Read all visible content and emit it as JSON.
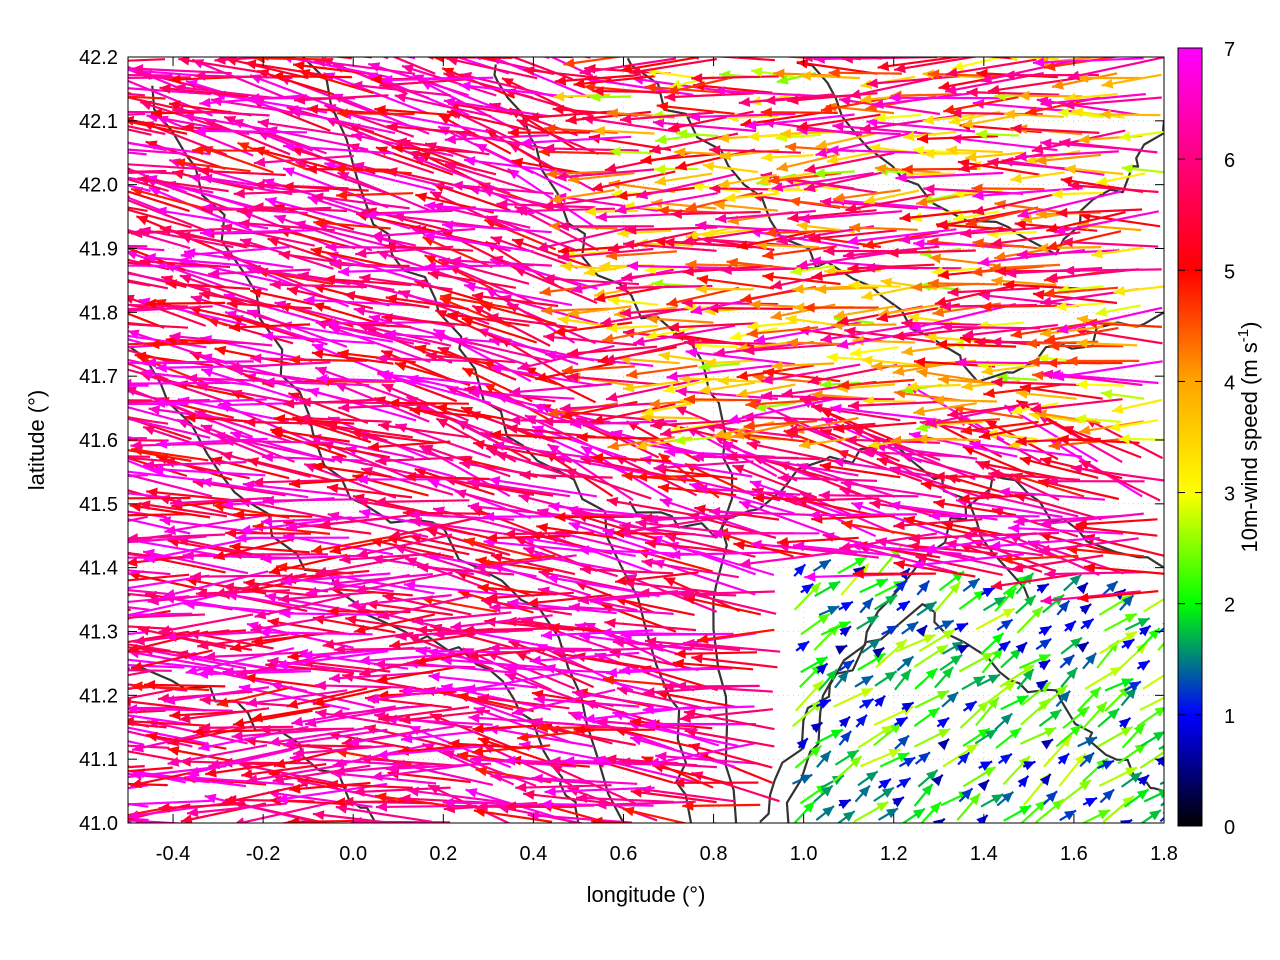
{
  "chart_data": {
    "type": "vector-field",
    "title": "",
    "xlabel": "longitude (°)",
    "ylabel": "latitude (°)",
    "xlim": [
      -0.5,
      1.8
    ],
    "ylim": [
      41.0,
      42.2
    ],
    "x_ticks": [
      -0.4,
      -0.2,
      0.0,
      0.2,
      0.4,
      0.6,
      0.8,
      1.0,
      1.2,
      1.4,
      1.6,
      1.8
    ],
    "x_tick_labels": [
      "-0.4",
      "-0.2",
      "0.0",
      "0.2",
      "0.4",
      "0.6",
      "0.8",
      "1.0",
      "1.2",
      "1.4",
      "1.6",
      "1.8"
    ],
    "y_ticks": [
      41.0,
      41.1,
      41.2,
      41.3,
      41.4,
      41.5,
      41.6,
      41.7,
      41.8,
      41.9,
      42.0,
      42.1,
      42.2
    ],
    "y_tick_labels": [
      "41.0",
      "41.1",
      "41.2",
      "41.3",
      "41.4",
      "41.5",
      "41.6",
      "41.7",
      "41.8",
      "41.9",
      "42.0",
      "42.1",
      "42.2"
    ],
    "grid": true,
    "colorbar": {
      "label_main": "10m-wind speed (m s",
      "label_sup": "-1",
      "label_end": ")",
      "min": 0,
      "max": 7,
      "ticks": [
        0,
        1,
        2,
        3,
        4,
        5,
        6,
        7
      ],
      "tick_labels": [
        "0",
        "1",
        "2",
        "3",
        "4",
        "5",
        "6",
        "7"
      ],
      "palette": [
        "#000000",
        "#0000ff",
        "#00ff00",
        "#ffff00",
        "#ffa500",
        "#ff0000",
        "#ff00ff"
      ]
    },
    "wind_regimes": [
      {
        "region": "west",
        "lon": [
          -0.5,
          0.7
        ],
        "lat": [
          41.0,
          42.2
        ],
        "direction": "from east-southeast",
        "speed_range": [
          5,
          7
        ]
      },
      {
        "region": "north-center",
        "lon": [
          0.6,
          1.8
        ],
        "lat": [
          41.6,
          42.2
        ],
        "direction": "from east",
        "speed_range": [
          3,
          7
        ]
      },
      {
        "region": "south-east",
        "lon": [
          1.0,
          1.8
        ],
        "lat": [
          41.0,
          41.4
        ],
        "direction": "from southwest",
        "speed_range": [
          0.5,
          3
        ]
      }
    ]
  }
}
